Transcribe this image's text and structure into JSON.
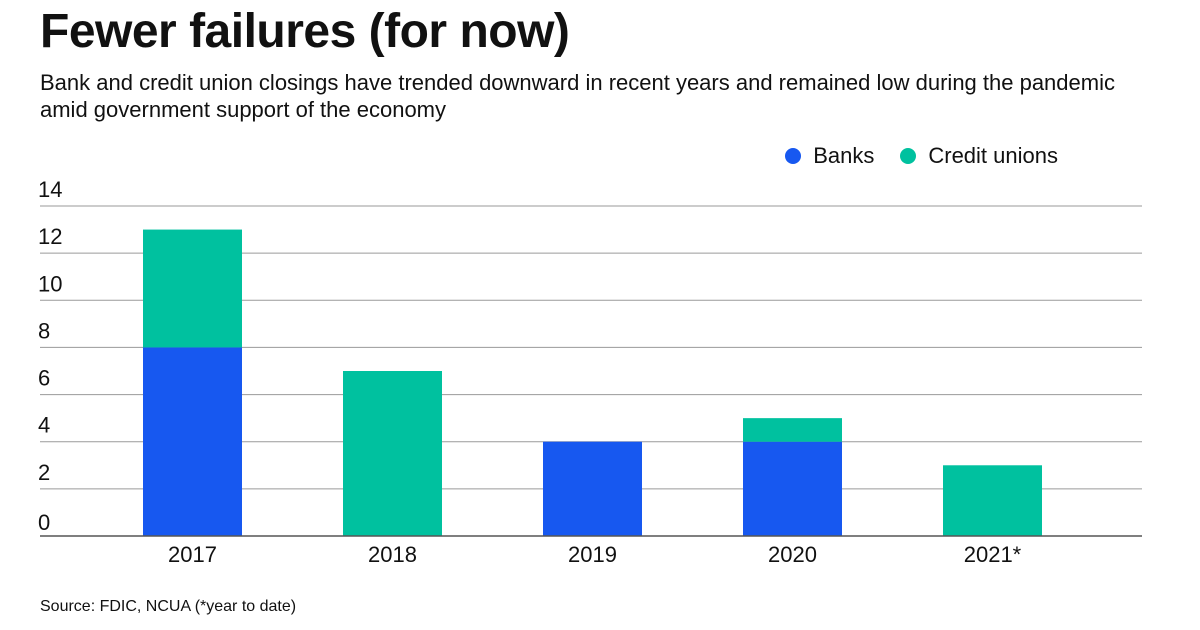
{
  "title": "Fewer failures (for now)",
  "subtitle": "Bank and credit union closings have trended downward in recent years and remained low during the pandemic amid government support of the economy",
  "source": "Source: FDIC, NCUA (*year to date)",
  "colors": {
    "banks": "#1758f0",
    "credit_unions": "#00c19f",
    "grid": "#9a9a9a",
    "axis": "#555555"
  },
  "chart_data": {
    "type": "bar",
    "stacked": true,
    "categories": [
      "2017",
      "2018",
      "2019",
      "2020",
      "2021*"
    ],
    "series": [
      {
        "name": "Banks",
        "values": [
          8,
          0,
          4,
          4,
          0
        ]
      },
      {
        "name": "Credit unions",
        "values": [
          5,
          7,
          0,
          1,
          3
        ]
      }
    ],
    "yticks": [
      "0",
      "2",
      "4",
      "6",
      "8",
      "10",
      "12",
      "14"
    ],
    "ylim": [
      0,
      14
    ],
    "grid": true,
    "legend_position": "top-right"
  }
}
